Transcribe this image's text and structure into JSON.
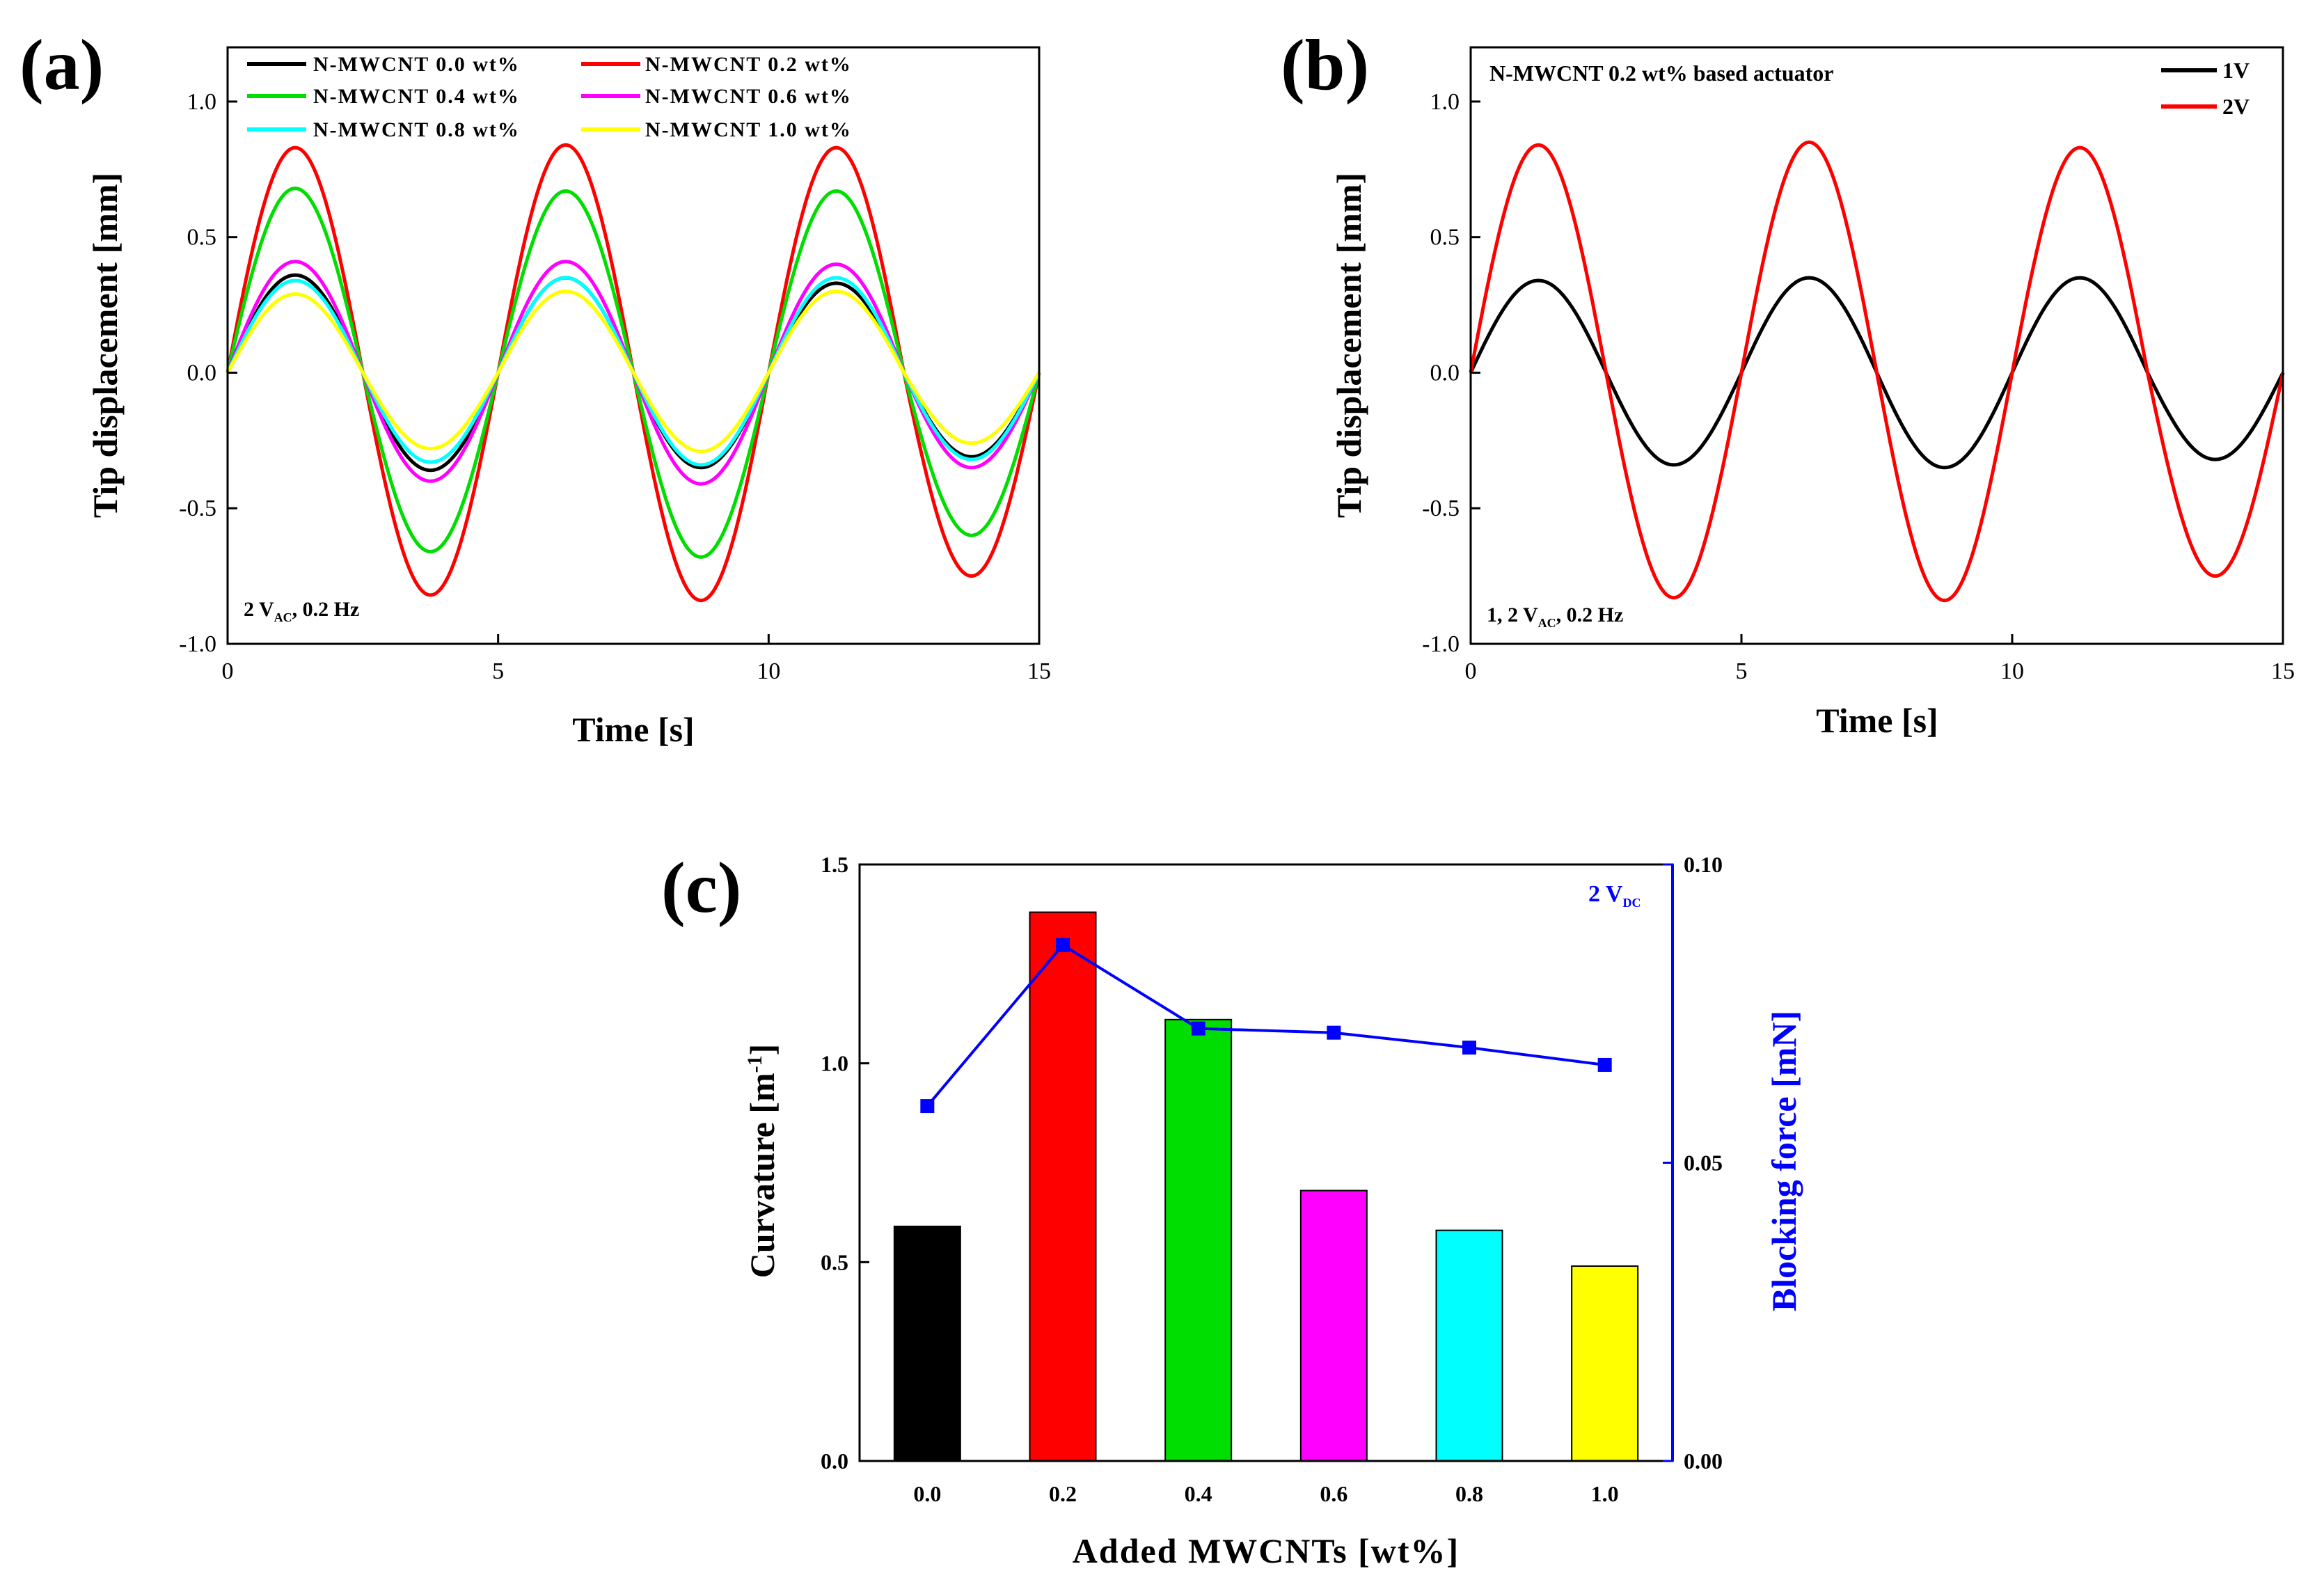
{
  "figure": {
    "chart_data": [
      {
        "type": "line",
        "panel_label": "(a)",
        "xlabel": "Time [s]",
        "ylabel": "Tip displacement [mm]",
        "xlim": [
          0,
          15
        ],
        "ylim": [
          -1.0,
          1.2
        ],
        "xticks": [
          0,
          5,
          10,
          15
        ],
        "yticks": [
          -1.0,
          -0.5,
          0.0,
          0.5,
          1.0
        ],
        "xtick_labels": [
          "0",
          "5",
          "10",
          "15"
        ],
        "ytick_labels": [
          "-1.0",
          "-0.5",
          "0.0",
          "0.5",
          "1.0"
        ],
        "annotation": {
          "main": "2 V",
          "sub": "AC",
          "rest": ", 0.2 Hz"
        },
        "legend_position": "top",
        "signal": {
          "frequency_hz": 0.2,
          "duration_s": 15
        },
        "series": [
          {
            "name": "N-MWCNT 0.0 wt%",
            "color": "#000000",
            "amplitudes": [
              0.36,
              0.36,
              0.35,
              0.35,
              0.33,
              0.31
            ]
          },
          {
            "name": "N-MWCNT 0.2 wt%",
            "color": "#ff0000",
            "amplitudes": [
              0.83,
              0.82,
              0.84,
              0.84,
              0.83,
              0.75
            ]
          },
          {
            "name": "N-MWCNT 0.4 wt%",
            "color": "#00dd00",
            "amplitudes": [
              0.68,
              0.66,
              0.67,
              0.68,
              0.67,
              0.6
            ]
          },
          {
            "name": "N-MWCNT 0.6 wt%",
            "color": "#ff00ff",
            "amplitudes": [
              0.41,
              0.4,
              0.41,
              0.41,
              0.4,
              0.35
            ]
          },
          {
            "name": "N-MWCNT 0.8 wt%",
            "color": "#00ffff",
            "amplitudes": [
              0.34,
              0.33,
              0.35,
              0.34,
              0.35,
              0.32
            ]
          },
          {
            "name": "N-MWCNT 1.0 wt%",
            "color": "#ffff00",
            "amplitudes": [
              0.29,
              0.28,
              0.3,
              0.29,
              0.3,
              0.26
            ]
          }
        ]
      },
      {
        "type": "line",
        "panel_label": "(b)",
        "title": "N-MWCNT 0.2 wt% based actuator",
        "xlabel": "Time [s]",
        "ylabel": "Tip displacement [mm]",
        "xlim": [
          0,
          15
        ],
        "ylim": [
          -1.0,
          1.2
        ],
        "xticks": [
          0,
          5,
          10,
          15
        ],
        "yticks": [
          -1.0,
          -0.5,
          0.0,
          0.5,
          1.0
        ],
        "xtick_labels": [
          "0",
          "5",
          "10",
          "15"
        ],
        "ytick_labels": [
          "-1.0",
          "-0.5",
          "0.0",
          "0.5",
          "1.0"
        ],
        "annotation": {
          "main": "1, 2 V",
          "sub": "AC",
          "rest": ", 0.2 Hz"
        },
        "legend_position": "top-right",
        "signal": {
          "frequency_hz": 0.2,
          "duration_s": 15
        },
        "series": [
          {
            "name": "1V",
            "color": "#000000",
            "amplitudes": [
              0.34,
              0.34,
              0.35,
              0.35,
              0.35,
              0.32
            ]
          },
          {
            "name": "2V",
            "color": "#ff0000",
            "amplitudes": [
              0.84,
              0.83,
              0.85,
              0.84,
              0.83,
              0.75
            ]
          }
        ]
      },
      {
        "type": "bar",
        "panel_label": "(c)",
        "xlabel": "Added MWCNTs [wt%]",
        "ylabel": "Curvature [m",
        "ylabel_sup": "-1",
        "ylabel_close": "]",
        "y2label": "Blocking force [mN]",
        "categories": [
          "0.0",
          "0.2",
          "0.4",
          "0.6",
          "0.8",
          "1.0"
        ],
        "values": [
          0.59,
          1.38,
          1.11,
          0.68,
          0.58,
          0.49
        ],
        "bar_colors": [
          "#000000",
          "#ff0000",
          "#00dd00",
          "#ff00ff",
          "#00ffff",
          "#ffff00"
        ],
        "ylim": [
          0,
          1.5
        ],
        "yticks": [
          0.0,
          0.5,
          1.0,
          1.5
        ],
        "ytick_labels": [
          "0.0",
          "0.5",
          "1.0",
          "1.5"
        ],
        "y2lim": [
          0,
          0.1
        ],
        "y2ticks": [
          0.0,
          0.05,
          0.1
        ],
        "y2tick_labels": [
          "0.00",
          "0.05",
          "0.10"
        ],
        "line_series": {
          "name": "Blocking force",
          "color": "#0000ff",
          "values": [
            0.0595,
            0.0865,
            0.0725,
            0.0718,
            0.0693,
            0.0664
          ]
        },
        "annotation": {
          "main": "2 V",
          "sub": "DC",
          "color": "#0000ff"
        }
      }
    ]
  }
}
